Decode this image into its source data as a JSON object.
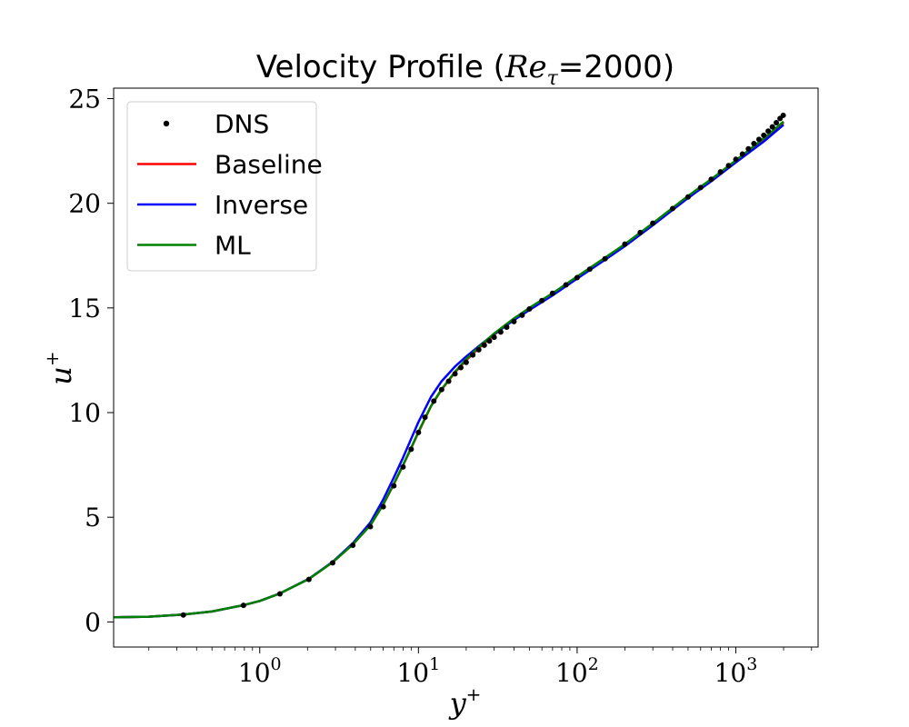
{
  "chart_data": {
    "type": "line",
    "title": "Velocity Profile (Re_τ=2000)",
    "title_parts": {
      "prefix": "Velocity Profile (",
      "re": "Re",
      "tau": "τ",
      "suffix": "=2000)"
    },
    "xlabel": "y+",
    "xlabel_parts": {
      "base": "y",
      "sup": "+"
    },
    "ylabel": "u+",
    "ylabel_parts": {
      "base": "u",
      "sup": "+"
    },
    "xscale": "log",
    "xlim": [
      0.12,
      3300
    ],
    "ylim": [
      -1.2,
      25.5
    ],
    "xticks": [
      {
        "value": 1,
        "base": "10",
        "exp": "0"
      },
      {
        "value": 10,
        "base": "10",
        "exp": "1"
      },
      {
        "value": 100,
        "base": "10",
        "exp": "2"
      },
      {
        "value": 1000,
        "base": "10",
        "exp": "3"
      }
    ],
    "yticks": [
      0,
      5,
      10,
      15,
      20,
      25
    ],
    "grid": false,
    "legend_position": "top-left",
    "series": [
      {
        "name": "DNS",
        "kind": "marker",
        "color": "#000000",
        "x": [
          0.33,
          0.79,
          1.34,
          2.04,
          2.88,
          3.86,
          4.98,
          6.0,
          7.0,
          8.0,
          9.0,
          10.0,
          11.0,
          12.5,
          14.0,
          15.5,
          17.0,
          18.5,
          20.0,
          22.0,
          24.0,
          26.0,
          28.0,
          30.0,
          33.0,
          36.0,
          40.0,
          45.0,
          50.0,
          60.0,
          70.0,
          85.0,
          100.0,
          120.0,
          150.0,
          200.0,
          250.0,
          300.0,
          400.0,
          500.0,
          600.0,
          700.0,
          800.0,
          900.0,
          1000.0,
          1100.0,
          1200.0,
          1300.0,
          1400.0,
          1500.0,
          1600.0,
          1700.0,
          1800.0,
          1900.0,
          1990.0
        ],
        "y": [
          0.33,
          0.79,
          1.34,
          2.03,
          2.82,
          3.66,
          4.55,
          5.5,
          6.5,
          7.4,
          8.25,
          9.05,
          9.78,
          10.55,
          11.1,
          11.5,
          11.85,
          12.15,
          12.4,
          12.75,
          13.0,
          13.22,
          13.42,
          13.6,
          13.85,
          14.08,
          14.35,
          14.65,
          14.95,
          15.35,
          15.7,
          16.1,
          16.45,
          16.85,
          17.35,
          18.05,
          18.6,
          19.05,
          19.75,
          20.3,
          20.75,
          21.15,
          21.5,
          21.8,
          22.1,
          22.35,
          22.6,
          22.85,
          23.05,
          23.25,
          23.45,
          23.65,
          23.85,
          24.05,
          24.2
        ]
      },
      {
        "name": "Baseline",
        "kind": "line",
        "color": "#ff0000",
        "x": [
          0.12,
          0.2,
          0.33,
          0.5,
          0.79,
          1.0,
          1.34,
          2.04,
          2.88,
          3.86,
          4.98,
          6.0,
          7.0,
          8.0,
          9.0,
          10.0,
          12.0,
          14.0,
          17.0,
          20.0,
          25.0,
          30.0,
          40.0,
          50.0,
          70.0,
          100.0,
          150.0,
          200.0,
          300.0,
          500.0,
          700.0,
          1000.0,
          1500.0,
          2000.0
        ],
        "y": [
          0.22,
          0.25,
          0.35,
          0.5,
          0.8,
          1.0,
          1.36,
          2.05,
          2.85,
          3.7,
          4.62,
          5.6,
          6.58,
          7.48,
          8.3,
          9.05,
          10.3,
          11.1,
          11.92,
          12.5,
          13.2,
          13.72,
          14.45,
          14.95,
          15.65,
          16.45,
          17.35,
          18.0,
          19.0,
          20.3,
          21.1,
          22.0,
          23.05,
          23.85
        ]
      },
      {
        "name": "Inverse",
        "kind": "line",
        "color": "#0000ff",
        "x": [
          0.12,
          0.2,
          0.33,
          0.5,
          0.79,
          1.0,
          1.34,
          2.04,
          2.88,
          3.86,
          4.98,
          6.0,
          7.0,
          8.0,
          9.0,
          10.0,
          12.0,
          14.0,
          17.0,
          20.0,
          25.0,
          30.0,
          40.0,
          50.0,
          70.0,
          100.0,
          150.0,
          200.0,
          300.0,
          500.0,
          700.0,
          1000.0,
          1500.0,
          2000.0
        ],
        "y": [
          0.22,
          0.25,
          0.35,
          0.5,
          0.8,
          1.0,
          1.36,
          2.06,
          2.87,
          3.76,
          4.75,
          5.85,
          6.9,
          7.85,
          8.75,
          9.55,
          10.75,
          11.5,
          12.2,
          12.68,
          13.28,
          13.75,
          14.42,
          14.9,
          15.6,
          16.4,
          17.3,
          17.95,
          18.95,
          20.25,
          21.05,
          21.95,
          22.95,
          23.75
        ]
      },
      {
        "name": "ML",
        "kind": "line",
        "color": "#008000",
        "x": [
          0.12,
          0.2,
          0.33,
          0.5,
          0.79,
          1.0,
          1.34,
          2.04,
          2.88,
          3.86,
          4.98,
          6.0,
          7.0,
          8.0,
          9.0,
          10.0,
          12.0,
          14.0,
          17.0,
          20.0,
          25.0,
          30.0,
          40.0,
          50.0,
          70.0,
          100.0,
          150.0,
          200.0,
          300.0,
          500.0,
          700.0,
          1000.0,
          1500.0,
          2000.0
        ],
        "y": [
          0.22,
          0.25,
          0.35,
          0.5,
          0.8,
          1.0,
          1.36,
          2.05,
          2.85,
          3.7,
          4.62,
          5.62,
          6.6,
          7.5,
          8.32,
          9.08,
          10.32,
          11.12,
          11.95,
          12.55,
          13.25,
          13.78,
          14.5,
          15.0,
          15.7,
          16.5,
          17.4,
          18.05,
          19.05,
          20.35,
          21.15,
          22.05,
          23.1,
          23.9
        ]
      }
    ]
  }
}
